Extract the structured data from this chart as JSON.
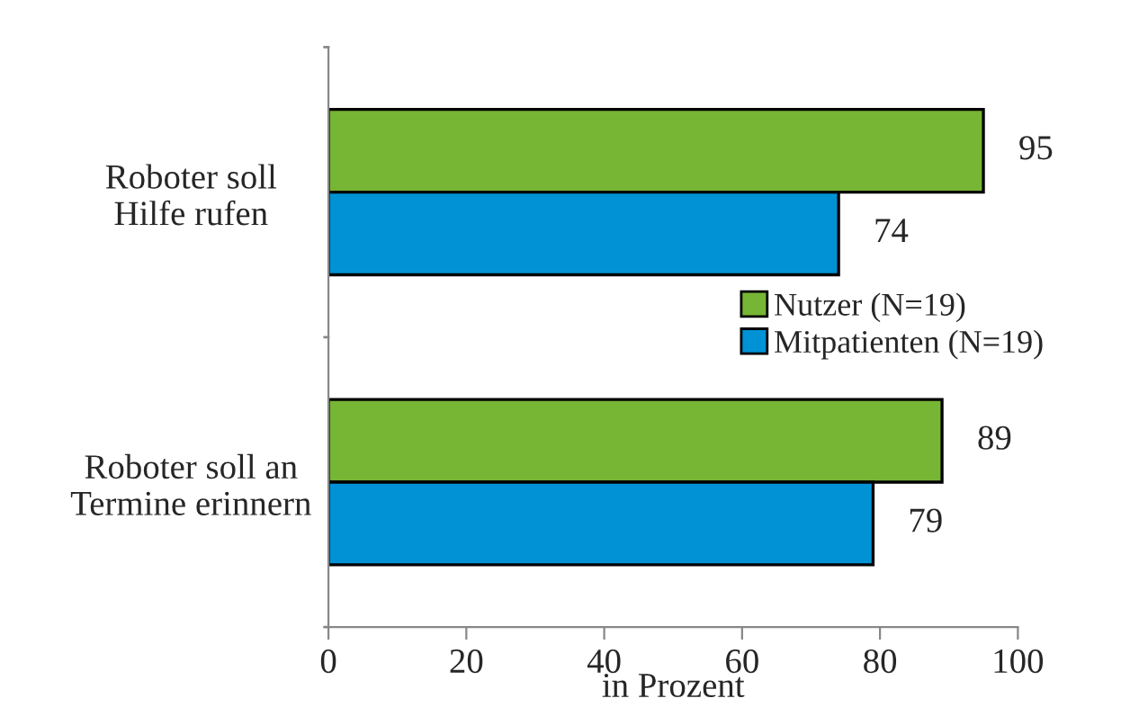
{
  "chart_data": {
    "type": "bar",
    "orientation": "horizontal",
    "xlabel": "in Prozent",
    "categories": [
      "Roboter soll\nHilfe rufen",
      "Roboter soll an\nTermine erinnern"
    ],
    "series": [
      {
        "name": "Nutzer (N=19)",
        "color": "#77b535",
        "values": [
          95,
          89
        ]
      },
      {
        "name": "Mitpatienten (N=19)",
        "color": "#0092d5",
        "values": [
          74,
          79
        ]
      }
    ],
    "xlim": [
      0,
      100
    ],
    "xticks": [
      0,
      20,
      40,
      60,
      80,
      100
    ],
    "data_labels": true,
    "legend": "right",
    "grid": false
  }
}
